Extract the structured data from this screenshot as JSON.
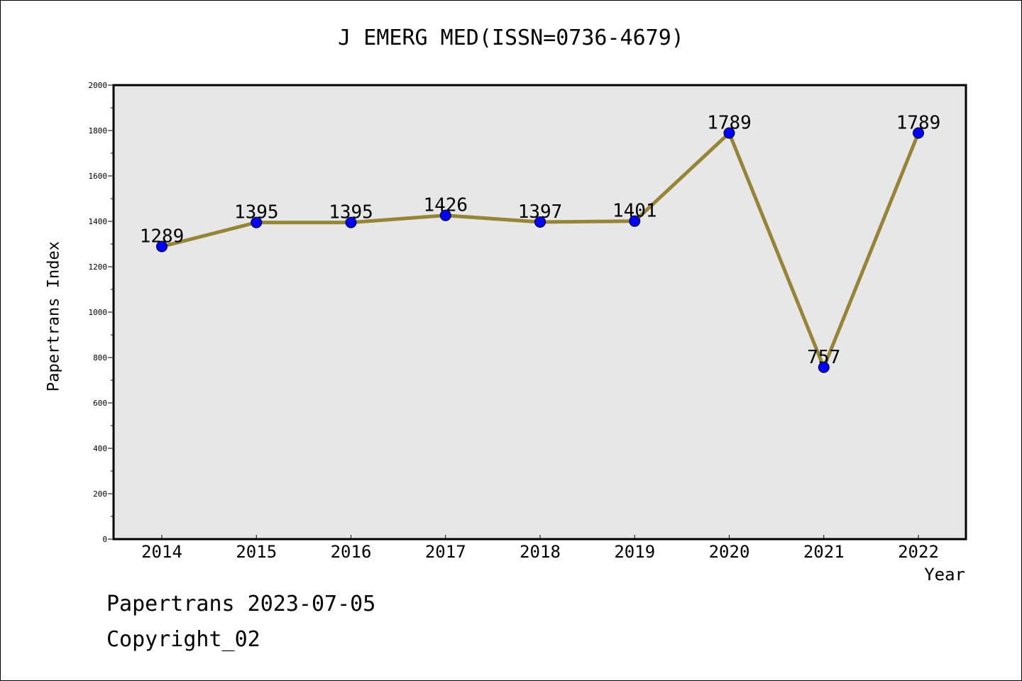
{
  "chart_data": {
    "type": "line",
    "title": "J EMERG MED(ISSN=0736-4679)",
    "xlabel": "Year",
    "ylabel": "Papertrans Index",
    "categories": [
      "2014",
      "2015",
      "2016",
      "2017",
      "2018",
      "2019",
      "2020",
      "2021",
      "2022"
    ],
    "series": [
      {
        "values": [
          1289,
          1395,
          1395,
          1426,
          1397,
          1401,
          1789,
          757,
          1789
        ],
        "line_color": "#978537",
        "marker_color": "#0000ff"
      }
    ],
    "data_labels": [
      "1289",
      "1395",
      "1395",
      "1426",
      "1397",
      "1401",
      "1789",
      "757",
      "1789"
    ],
    "ylim": [
      0,
      2000
    ],
    "yticks": [
      "0",
      "200",
      "400",
      "600",
      "800",
      "1000",
      "1200",
      "1400",
      "1600",
      "1800",
      "2000"
    ],
    "plot_background": "#e7e7e7",
    "grid": false
  },
  "footer": {
    "line1": "Papertrans 2023-07-05",
    "line2": "Copyright_02"
  }
}
